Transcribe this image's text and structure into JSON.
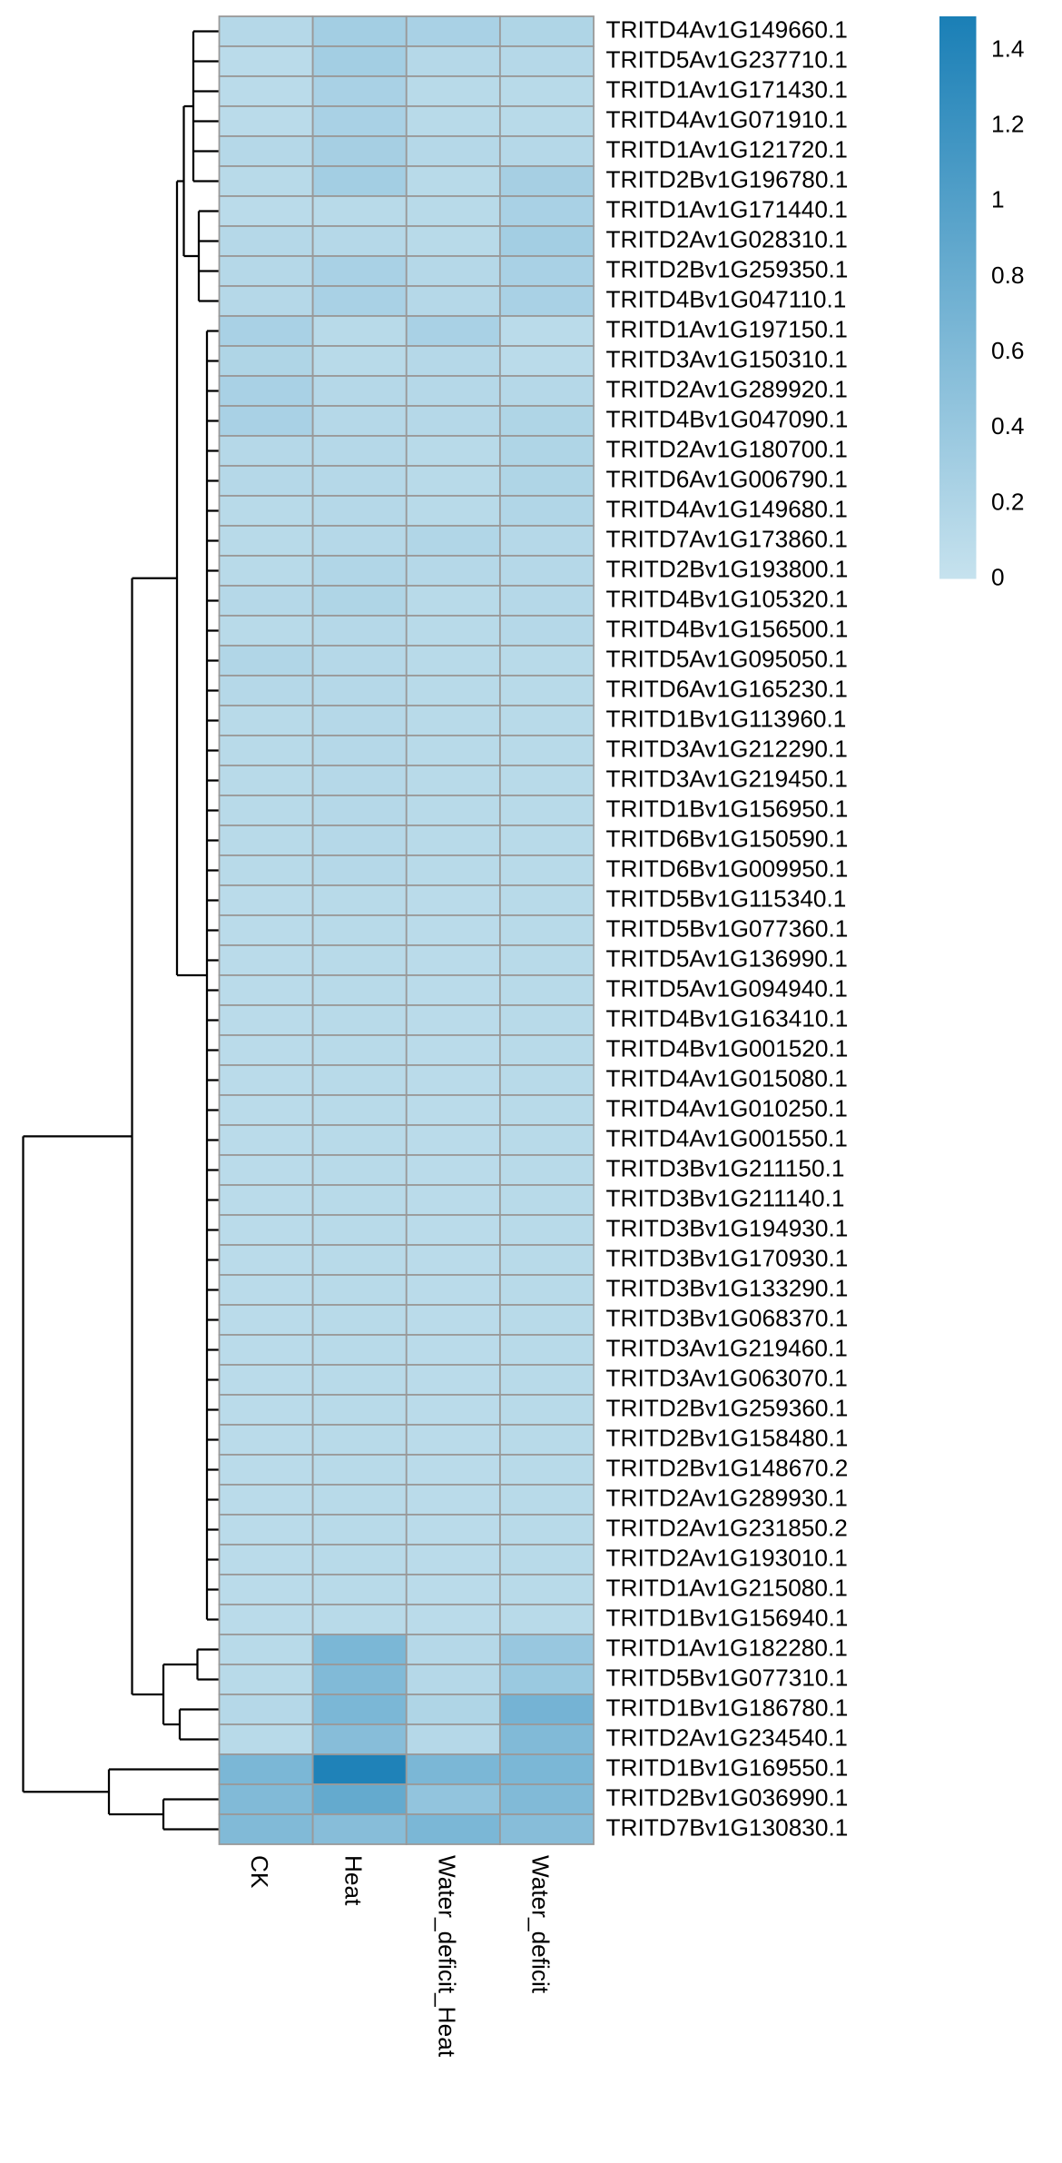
{
  "chart_data": {
    "type": "heatmap",
    "rows": [
      "TRITD4Av1G149660.1",
      "TRITD5Av1G237710.1",
      "TRITD1Av1G171430.1",
      "TRITD4Av1G071910.1",
      "TRITD1Av1G121720.1",
      "TRITD2Bv1G196780.1",
      "TRITD1Av1G171440.1",
      "TRITD2Av1G028310.1",
      "TRITD2Bv1G259350.1",
      "TRITD4Bv1G047110.1",
      "TRITD1Av1G197150.1",
      "TRITD3Av1G150310.1",
      "TRITD2Av1G289920.1",
      "TRITD4Bv1G047090.1",
      "TRITD2Av1G180700.1",
      "TRITD6Av1G006790.1",
      "TRITD4Av1G149680.1",
      "TRITD7Av1G173860.1",
      "TRITD2Bv1G193800.1",
      "TRITD4Bv1G105320.1",
      "TRITD4Bv1G156500.1",
      "TRITD5Av1G095050.1",
      "TRITD6Av1G165230.1",
      "TRITD1Bv1G113960.1",
      "TRITD3Av1G212290.1",
      "TRITD3Av1G219450.1",
      "TRITD1Bv1G156950.1",
      "TRITD6Bv1G150590.1",
      "TRITD6Bv1G009950.1",
      "TRITD5Bv1G115340.1",
      "TRITD5Bv1G077360.1",
      "TRITD5Av1G136990.1",
      "TRITD5Av1G094940.1",
      "TRITD4Bv1G163410.1",
      "TRITD4Bv1G001520.1",
      "TRITD4Av1G015080.1",
      "TRITD4Av1G010250.1",
      "TRITD4Av1G001550.1",
      "TRITD3Bv1G211150.1",
      "TRITD3Bv1G211140.1",
      "TRITD3Bv1G194930.1",
      "TRITD3Bv1G170930.1",
      "TRITD3Bv1G133290.1",
      "TRITD3Bv1G068370.1",
      "TRITD3Av1G219460.1",
      "TRITD3Av1G063070.1",
      "TRITD2Bv1G259360.1",
      "TRITD2Bv1G158480.1",
      "TRITD2Bv1G148670.2",
      "TRITD2Av1G289930.1",
      "TRITD2Av1G231850.2",
      "TRITD2Av1G193010.1",
      "TRITD1Av1G215080.1",
      "TRITD1Bv1G156940.1",
      "TRITD1Av1G182280.1",
      "TRITD5Bv1G077310.1",
      "TRITD1Bv1G186780.1",
      "TRITD2Av1G234540.1",
      "TRITD1Bv1G169550.1",
      "TRITD2Bv1G036990.1",
      "TRITD7Bv1G130830.1"
    ],
    "columns": [
      "CK",
      "Heat",
      "Water_deficit_Heat",
      "Water_deficit"
    ],
    "values": [
      [
        0.15,
        0.3,
        0.25,
        0.2
      ],
      [
        0.1,
        0.3,
        0.15,
        0.15
      ],
      [
        0.1,
        0.25,
        0.12,
        0.12
      ],
      [
        0.1,
        0.25,
        0.12,
        0.12
      ],
      [
        0.15,
        0.28,
        0.15,
        0.15
      ],
      [
        0.12,
        0.3,
        0.12,
        0.28
      ],
      [
        0.1,
        0.12,
        0.12,
        0.25
      ],
      [
        0.15,
        0.15,
        0.12,
        0.3
      ],
      [
        0.15,
        0.25,
        0.15,
        0.25
      ],
      [
        0.15,
        0.25,
        0.15,
        0.25
      ],
      [
        0.25,
        0.12,
        0.25,
        0.1
      ],
      [
        0.2,
        0.12,
        0.15,
        0.1
      ],
      [
        0.25,
        0.15,
        0.15,
        0.15
      ],
      [
        0.25,
        0.15,
        0.15,
        0.2
      ],
      [
        0.15,
        0.15,
        0.12,
        0.2
      ],
      [
        0.15,
        0.15,
        0.12,
        0.2
      ],
      [
        0.12,
        0.15,
        0.12,
        0.18
      ],
      [
        0.12,
        0.15,
        0.18,
        0.15
      ],
      [
        0.12,
        0.18,
        0.15,
        0.15
      ],
      [
        0.15,
        0.2,
        0.12,
        0.15
      ],
      [
        0.12,
        0.15,
        0.12,
        0.15
      ],
      [
        0.18,
        0.15,
        0.12,
        0.12
      ],
      [
        0.15,
        0.15,
        0.12,
        0.12
      ],
      [
        0.12,
        0.15,
        0.12,
        0.12
      ],
      [
        0.12,
        0.15,
        0.12,
        0.12
      ],
      [
        0.12,
        0.15,
        0.12,
        0.12
      ],
      [
        0.12,
        0.15,
        0.12,
        0.12
      ],
      [
        0.12,
        0.15,
        0.12,
        0.12
      ],
      [
        0.12,
        0.15,
        0.12,
        0.12
      ],
      [
        0.1,
        0.12,
        0.1,
        0.12
      ],
      [
        0.1,
        0.12,
        0.1,
        0.12
      ],
      [
        0.1,
        0.12,
        0.1,
        0.12
      ],
      [
        0.1,
        0.12,
        0.1,
        0.12
      ],
      [
        0.1,
        0.12,
        0.1,
        0.12
      ],
      [
        0.1,
        0.12,
        0.1,
        0.12
      ],
      [
        0.1,
        0.12,
        0.1,
        0.12
      ],
      [
        0.1,
        0.12,
        0.1,
        0.12
      ],
      [
        0.1,
        0.12,
        0.1,
        0.12
      ],
      [
        0.1,
        0.12,
        0.1,
        0.12
      ],
      [
        0.1,
        0.12,
        0.1,
        0.12
      ],
      [
        0.1,
        0.12,
        0.1,
        0.12
      ],
      [
        0.1,
        0.12,
        0.1,
        0.12
      ],
      [
        0.1,
        0.12,
        0.1,
        0.12
      ],
      [
        0.1,
        0.12,
        0.1,
        0.12
      ],
      [
        0.1,
        0.12,
        0.1,
        0.12
      ],
      [
        0.1,
        0.12,
        0.1,
        0.12
      ],
      [
        0.1,
        0.12,
        0.1,
        0.12
      ],
      [
        0.1,
        0.12,
        0.1,
        0.12
      ],
      [
        0.1,
        0.12,
        0.1,
        0.12
      ],
      [
        0.1,
        0.12,
        0.1,
        0.12
      ],
      [
        0.1,
        0.12,
        0.1,
        0.12
      ],
      [
        0.1,
        0.12,
        0.1,
        0.12
      ],
      [
        0.1,
        0.12,
        0.1,
        0.12
      ],
      [
        0.1,
        0.12,
        0.1,
        0.12
      ],
      [
        0.12,
        0.65,
        0.15,
        0.4
      ],
      [
        0.12,
        0.6,
        0.15,
        0.38
      ],
      [
        0.15,
        0.65,
        0.2,
        0.7
      ],
      [
        0.12,
        0.55,
        0.15,
        0.6
      ],
      [
        0.65,
        1.45,
        0.65,
        0.65
      ],
      [
        0.6,
        0.85,
        0.45,
        0.6
      ],
      [
        0.6,
        0.55,
        0.65,
        0.55
      ]
    ],
    "colorscale": [
      "#c6e2ee",
      "#1a7fb6"
    ],
    "zlim": [
      0,
      1.49
    ],
    "zticks": [
      0,
      0.2,
      0.4,
      0.6,
      0.8,
      1,
      1.2,
      1.4
    ]
  }
}
